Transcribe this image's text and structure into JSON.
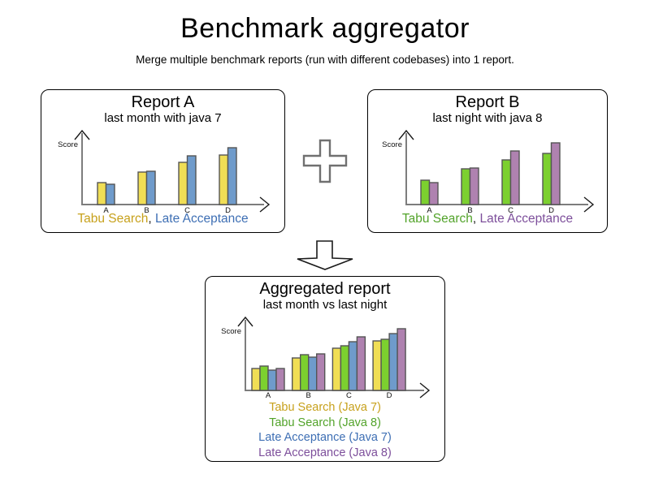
{
  "page": {
    "title": "Benchmark aggregator",
    "subtitle": "Merge multiple benchmark reports (run with different codebases) into 1 report."
  },
  "icons": {
    "plus": "plus (merge reports)",
    "down_arrow": "down arrow (produces aggregated report)"
  },
  "colors": {
    "background": "#FFFFFF",
    "text": "#000000",
    "box_border": "#000000",
    "axis": "#7D7D7D",
    "axis_arrow": "#1A1A1A",
    "bar_outline": "#555555",
    "plus_outline": "#707070",
    "arrow_outline": "#1A1A1A",
    "tabu_java7_bar": "#F0DE55",
    "tabu_java8_bar": "#7CD02F",
    "late_java7_bar": "#6F9BCB",
    "late_java8_bar": "#AF82B0",
    "tabu_java7_text": "#C7A11C",
    "tabu_java8_text": "#52A32A",
    "late_java7_text": "#3E6FB4",
    "late_java8_text": "#7D4F9B"
  },
  "chart_data": [
    {
      "id": "report_a",
      "type": "bar",
      "title": "Report A",
      "subtitle": "last month with java 7",
      "ylabel": "Score",
      "xlabel": "",
      "categories": [
        "A",
        "B",
        "C",
        "D"
      ],
      "series": [
        {
          "name": "Tabu Search",
          "color": "#F0DE55",
          "values": [
            27,
            40,
            52,
            61
          ]
        },
        {
          "name": "Late Acceptance",
          "color": "#6F9BCB",
          "values": [
            25,
            41,
            60,
            70
          ]
        }
      ],
      "legend": [
        [
          {
            "text": "Tabu Search",
            "color": "#C7A11C"
          },
          {
            "text": ", ",
            "color": "#1A1A1A"
          },
          {
            "text": "Late Acceptance",
            "color": "#3E6FB4"
          }
        ]
      ],
      "notes": "axis has no numeric ticks; values are relative bar heights"
    },
    {
      "id": "report_b",
      "type": "bar",
      "title": "Report B",
      "subtitle": "last night with java 8",
      "ylabel": "Score",
      "xlabel": "",
      "categories": [
        "A",
        "B",
        "C",
        "D"
      ],
      "series": [
        {
          "name": "Tabu Search",
          "color": "#7CD02F",
          "values": [
            30,
            44,
            55,
            63
          ]
        },
        {
          "name": "Late Acceptance",
          "color": "#AF82B0",
          "values": [
            27,
            45,
            66,
            76
          ]
        }
      ],
      "legend": [
        [
          {
            "text": "Tabu Search",
            "color": "#52A32A"
          },
          {
            "text": ", ",
            "color": "#1A1A1A"
          },
          {
            "text": "Late Acceptance",
            "color": "#7D4F9B"
          }
        ]
      ],
      "notes": "axis has no numeric ticks; values are relative bar heights"
    },
    {
      "id": "aggregated",
      "type": "bar",
      "title": "Aggregated report",
      "subtitle": "last month vs last night",
      "ylabel": "Score",
      "xlabel": "",
      "categories": [
        "A",
        "B",
        "C",
        "D"
      ],
      "series": [
        {
          "name": "Tabu Search (Java 7)",
          "color": "#F0DE55",
          "values": [
            27,
            40,
            52,
            61
          ]
        },
        {
          "name": "Tabu Search (Java 8)",
          "color": "#7CD02F",
          "values": [
            30,
            44,
            55,
            63
          ]
        },
        {
          "name": "Late Acceptance (Java 7)",
          "color": "#6F9BCB",
          "values": [
            25,
            41,
            60,
            70
          ]
        },
        {
          "name": "Late Acceptance (Java 8)",
          "color": "#AF82B0",
          "values": [
            27,
            45,
            66,
            76
          ]
        }
      ],
      "legend": [
        [
          {
            "text": "Tabu Search (Java 7)",
            "color": "#C7A11C"
          }
        ],
        [
          {
            "text": "Tabu Search (Java 8)",
            "color": "#52A32A"
          }
        ],
        [
          {
            "text": "Late Acceptance (Java 7)",
            "color": "#3E6FB4"
          }
        ],
        [
          {
            "text": "Late Acceptance (Java 8)",
            "color": "#7D4F9B"
          }
        ]
      ],
      "notes": "axis has no numeric ticks; values are relative bar heights"
    }
  ]
}
